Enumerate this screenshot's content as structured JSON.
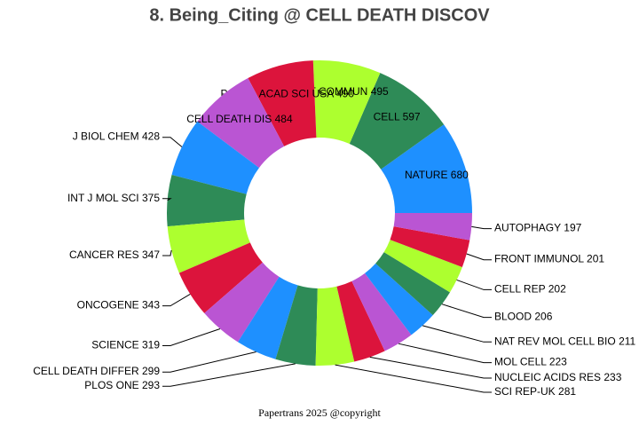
{
  "chart_data": {
    "type": "donut",
    "title": "8. Being_Citing @ CELL DEATH DISCOV",
    "footer": "Papertrans 2025 @copyright",
    "categories": [
      "NATURE",
      "CELL",
      "NAT COMMUN",
      "P NATL ACAD SCI USA",
      "CELL DEATH DIS",
      "J BIOL CHEM",
      "INT J MOL SCI",
      "CANCER RES",
      "ONCOGENE",
      "SCIENCE",
      "CELL DEATH DIFFER",
      "PLOS ONE",
      "SCI REP-UK",
      "NUCLEIC ACIDS RES",
      "MOL CELL",
      "NAT REV MOL CELL BIO",
      "BLOOD",
      "CELL REP",
      "FRONT IMMUNOL",
      "AUTOPHAGY"
    ],
    "values": [
      680,
      597,
      495,
      490,
      484,
      428,
      375,
      347,
      343,
      319,
      299,
      293,
      281,
      233,
      223,
      211,
      206,
      202,
      201,
      197
    ],
    "colors": [
      "#1e90ff",
      "#2e8b57",
      "#adff2f",
      "#dc143c",
      "#ba55d3"
    ]
  }
}
